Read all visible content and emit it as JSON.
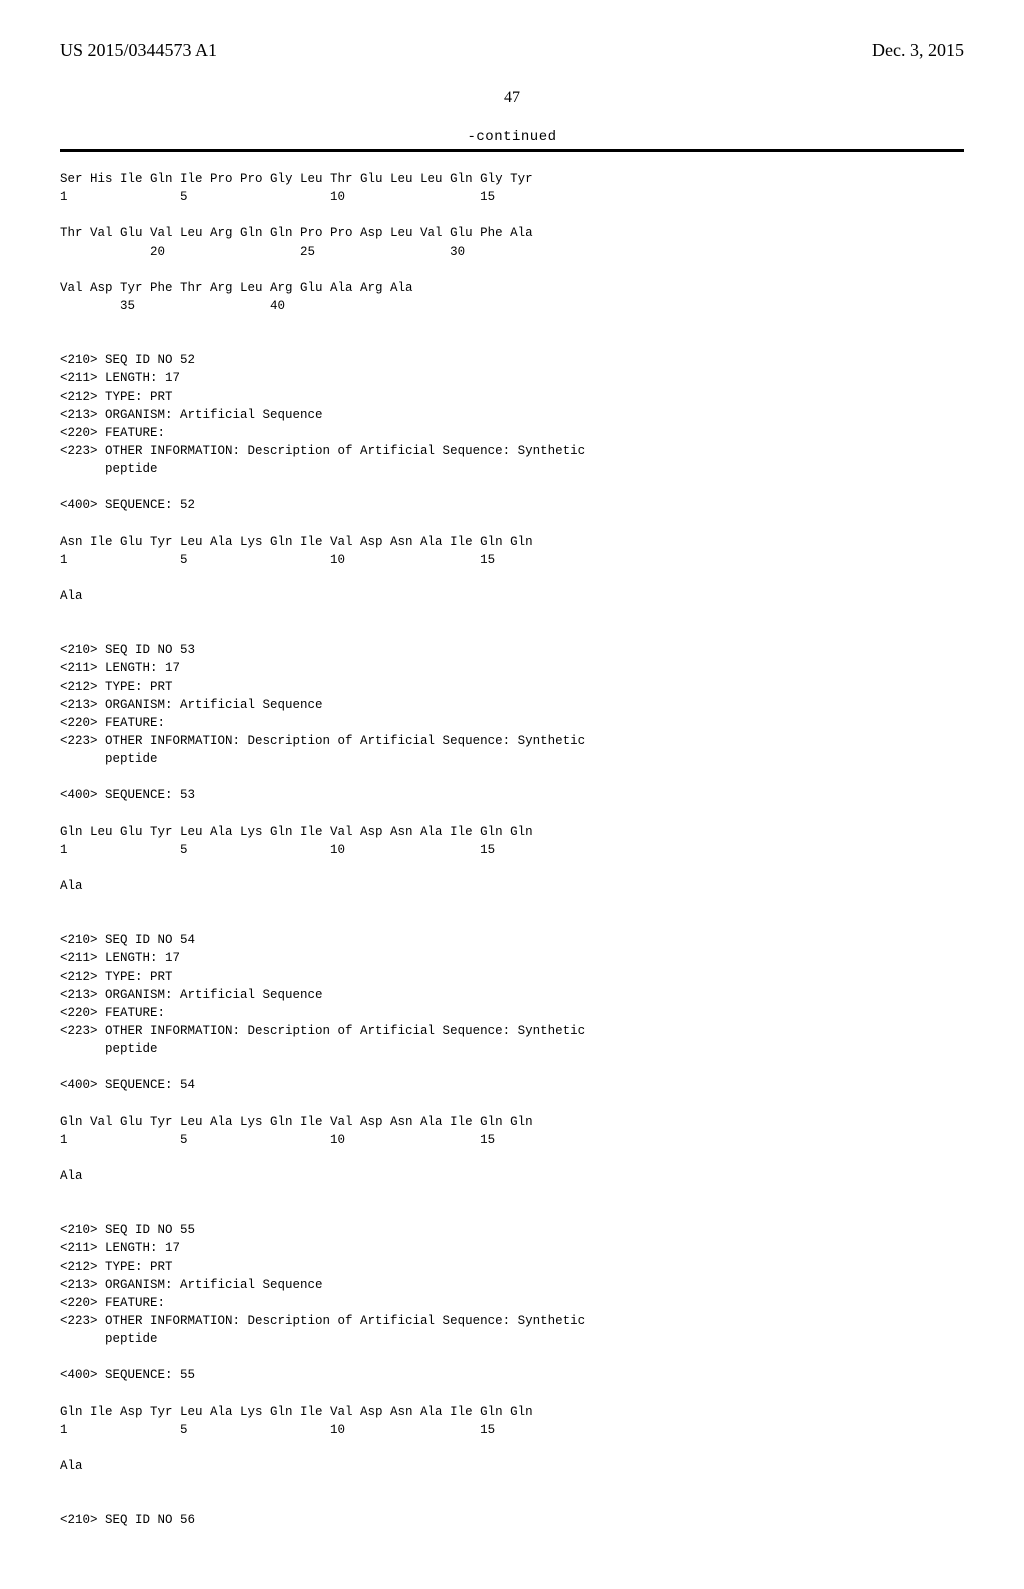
{
  "header": {
    "publication_number": "US 2015/0344573 A1",
    "publication_date": "Dec. 3, 2015"
  },
  "page_number": "47",
  "continued_label": "-continued",
  "sequence_text": "Ser His Ile Gln Ile Pro Pro Gly Leu Thr Glu Leu Leu Gln Gly Tyr\n1               5                   10                  15\n\nThr Val Glu Val Leu Arg Gln Gln Pro Pro Asp Leu Val Glu Phe Ala\n            20                  25                  30\n\nVal Asp Tyr Phe Thr Arg Leu Arg Glu Ala Arg Ala\n        35                  40\n\n\n<210> SEQ ID NO 52\n<211> LENGTH: 17\n<212> TYPE: PRT\n<213> ORGANISM: Artificial Sequence\n<220> FEATURE:\n<223> OTHER INFORMATION: Description of Artificial Sequence: Synthetic\n      peptide\n\n<400> SEQUENCE: 52\n\nAsn Ile Glu Tyr Leu Ala Lys Gln Ile Val Asp Asn Ala Ile Gln Gln\n1               5                   10                  15\n\nAla\n\n\n<210> SEQ ID NO 53\n<211> LENGTH: 17\n<212> TYPE: PRT\n<213> ORGANISM: Artificial Sequence\n<220> FEATURE:\n<223> OTHER INFORMATION: Description of Artificial Sequence: Synthetic\n      peptide\n\n<400> SEQUENCE: 53\n\nGln Leu Glu Tyr Leu Ala Lys Gln Ile Val Asp Asn Ala Ile Gln Gln\n1               5                   10                  15\n\nAla\n\n\n<210> SEQ ID NO 54\n<211> LENGTH: 17\n<212> TYPE: PRT\n<213> ORGANISM: Artificial Sequence\n<220> FEATURE:\n<223> OTHER INFORMATION: Description of Artificial Sequence: Synthetic\n      peptide\n\n<400> SEQUENCE: 54\n\nGln Val Glu Tyr Leu Ala Lys Gln Ile Val Asp Asn Ala Ile Gln Gln\n1               5                   10                  15\n\nAla\n\n\n<210> SEQ ID NO 55\n<211> LENGTH: 17\n<212> TYPE: PRT\n<213> ORGANISM: Artificial Sequence\n<220> FEATURE:\n<223> OTHER INFORMATION: Description of Artificial Sequence: Synthetic\n      peptide\n\n<400> SEQUENCE: 55\n\nGln Ile Asp Tyr Leu Ala Lys Gln Ile Val Asp Asn Ala Ile Gln Gln\n1               5                   10                  15\n\nAla\n\n\n<210> SEQ ID NO 56"
}
